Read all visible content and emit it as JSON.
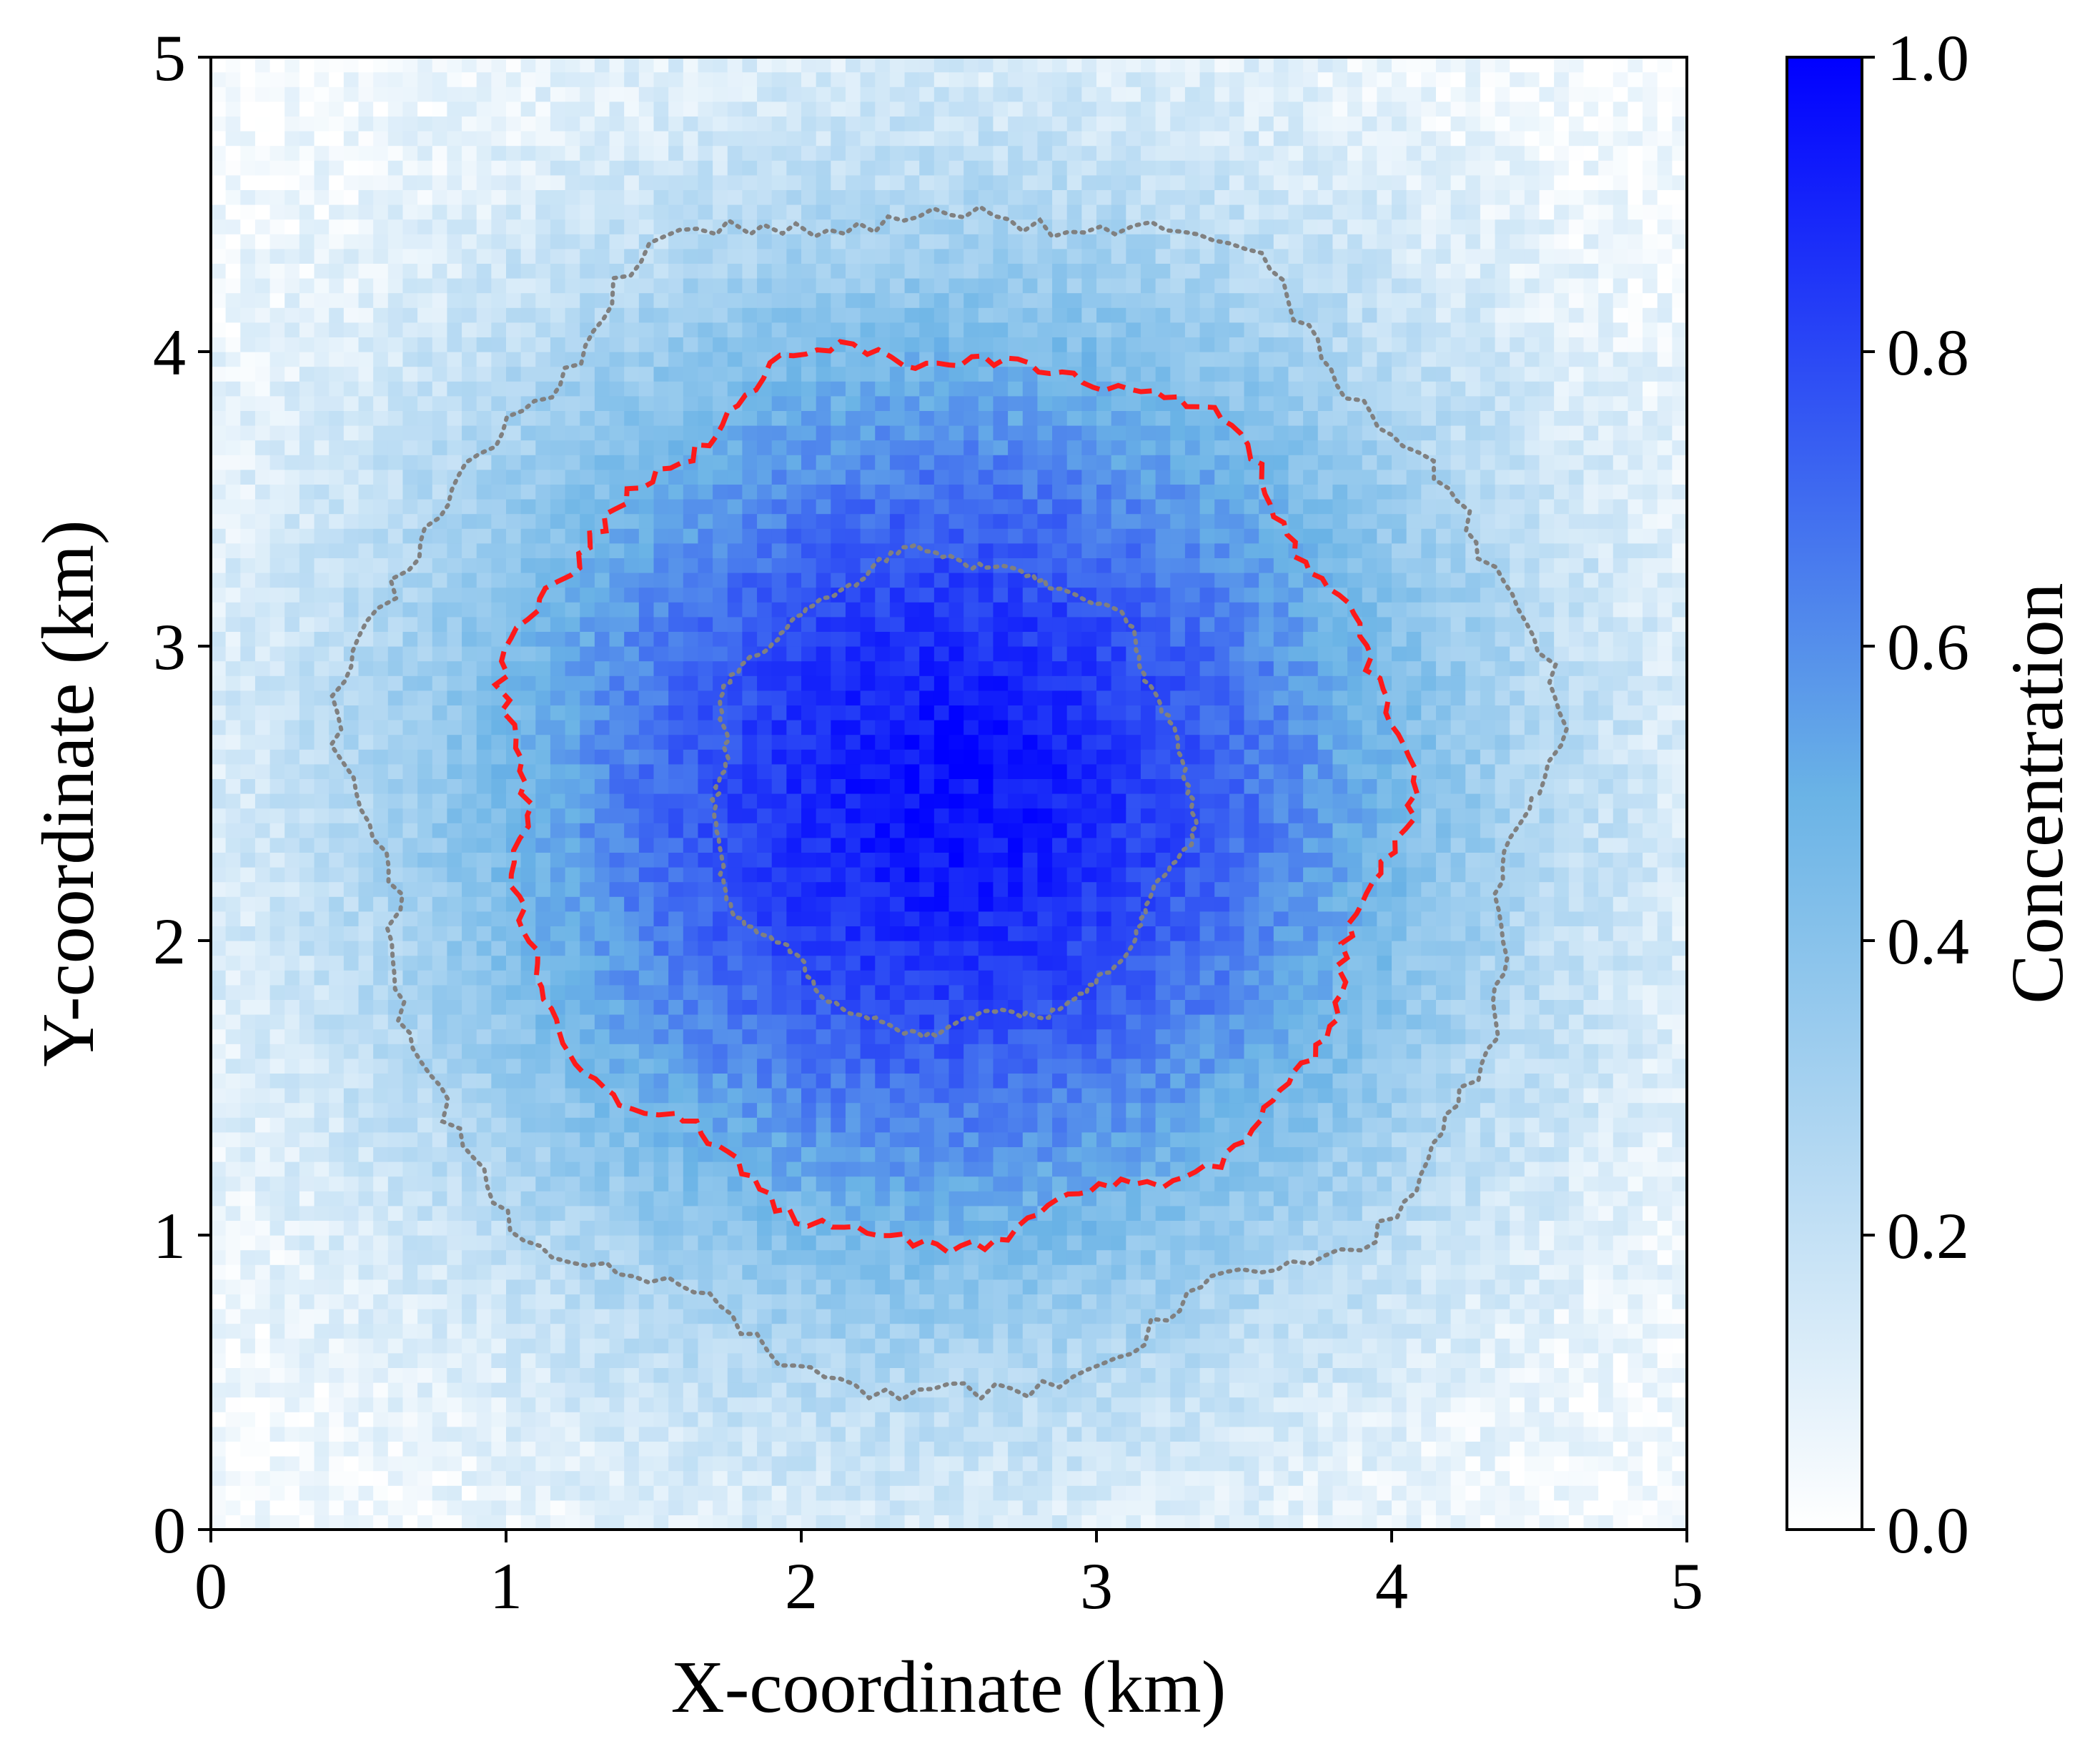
{
  "chart_data": {
    "type": "heatmap",
    "title": "",
    "xlabel": "X-coordinate (km)",
    "ylabel": "Y-coordinate (km)",
    "xlim": [
      0,
      5
    ],
    "ylim": [
      0,
      5
    ],
    "xticks": [
      "0",
      "1",
      "2",
      "3",
      "4",
      "5"
    ],
    "yticks": [
      "0",
      "1",
      "2",
      "3",
      "4",
      "5"
    ],
    "grid": false,
    "grid_resolution": 100,
    "peak_center": [
      2.5,
      2.5
    ],
    "colorbar": {
      "label": "Concentration",
      "range": [
        0.0,
        1.0
      ],
      "ticks": [
        "0.0",
        "0.2",
        "0.4",
        "0.6",
        "0.8",
        "1.0"
      ],
      "color_low": "#ffffff",
      "color_mid": "#6ab3e6",
      "color_high": "#0000ff"
    },
    "contours": [
      {
        "level_description": "outer boundary",
        "style": "dotted",
        "color": "#808080",
        "approx_radius_km": 2.0
      },
      {
        "level_description": "middle boundary",
        "style": "dashed",
        "color": "#ff1a1a",
        "approx_radius_km": 1.5
      },
      {
        "level_description": "inner core",
        "style": "dotted",
        "color": "#808080",
        "approx_radius_km": 0.8
      }
    ]
  }
}
